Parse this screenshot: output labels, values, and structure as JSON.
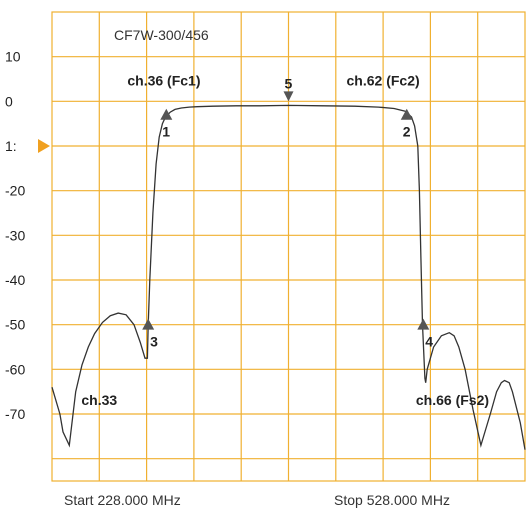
{
  "chart_data": {
    "type": "line",
    "title": "CF7W-300/456",
    "start_label": "Start 228.000 MHz",
    "stop_label": "Stop 528.000 MHz",
    "xlim": [
      228,
      528
    ],
    "ylim": [
      -85,
      20
    ],
    "y_ticks": [
      "10",
      "0",
      "1:",
      "-20",
      "-30",
      "-40",
      "-50",
      "-60",
      "-70"
    ],
    "y_tick_values": [
      10,
      0,
      -10,
      -20,
      -30,
      -40,
      -50,
      -60,
      -70
    ],
    "grid": true,
    "colors": {
      "grid": "#f0b030",
      "trace": "#333333",
      "marker": "#555555",
      "ref_marker": "#f0a020"
    },
    "series": [
      {
        "x": [
          228,
          233,
          235,
          239,
          243,
          247,
          251,
          255,
          260,
          265,
          270,
          275,
          280,
          284,
          287,
          288.5,
          289,
          290,
          292,
          294,
          296,
          298,
          300,
          303,
          306,
          310,
          315,
          320,
          330,
          345,
          360,
          378,
          400,
          420,
          435,
          445,
          452,
          456,
          458,
          460,
          461,
          462,
          463,
          464.5,
          465,
          466,
          470,
          475,
          480,
          483,
          486,
          490,
          495,
          500,
          506,
          510,
          513,
          515,
          518,
          520,
          525,
          528
        ],
        "y": [
          -64,
          -70,
          -74,
          -77,
          -65,
          -59,
          -55,
          -52,
          -49.5,
          -48,
          -47.4,
          -47.8,
          -50,
          -54,
          -57.5,
          -57.5,
          -50,
          -40,
          -25,
          -14,
          -8,
          -5,
          -3.5,
          -2.4,
          -1.8,
          -1.5,
          -1.3,
          -1.2,
          -1.1,
          -1.0,
          -1.0,
          -0.9,
          -1.0,
          -1.1,
          -1.3,
          -1.6,
          -2.2,
          -3.5,
          -5.5,
          -10,
          -20,
          -35,
          -50,
          -62,
          -63,
          -60,
          -55,
          -52.5,
          -51.8,
          -52.5,
          -55,
          -60,
          -69,
          -77,
          -70,
          -65,
          -63,
          -62.5,
          -63,
          -65,
          -72,
          -78
        ]
      }
    ],
    "markers": [
      {
        "label": "1",
        "x": 300.5,
        "y": -3
      },
      {
        "label": "2",
        "x": 453,
        "y": -3
      },
      {
        "label": "3",
        "x": 289,
        "y": -50
      },
      {
        "label": "4",
        "x": 463.5,
        "y": -50
      },
      {
        "label": "5",
        "x": 378,
        "y": -0.9
      }
    ],
    "annotations": [
      {
        "text": "ch.36 (Fc1)",
        "x": 299,
        "y": 3.5
      },
      {
        "text": "ch.62 (Fc2)",
        "x": 438,
        "y": 3.5
      },
      {
        "text": "ch.33",
        "x": 258,
        "y": -68
      },
      {
        "text": "ch.66 (Fs2)",
        "x": 482,
        "y": -68
      }
    ],
    "reference_level": -10
  }
}
